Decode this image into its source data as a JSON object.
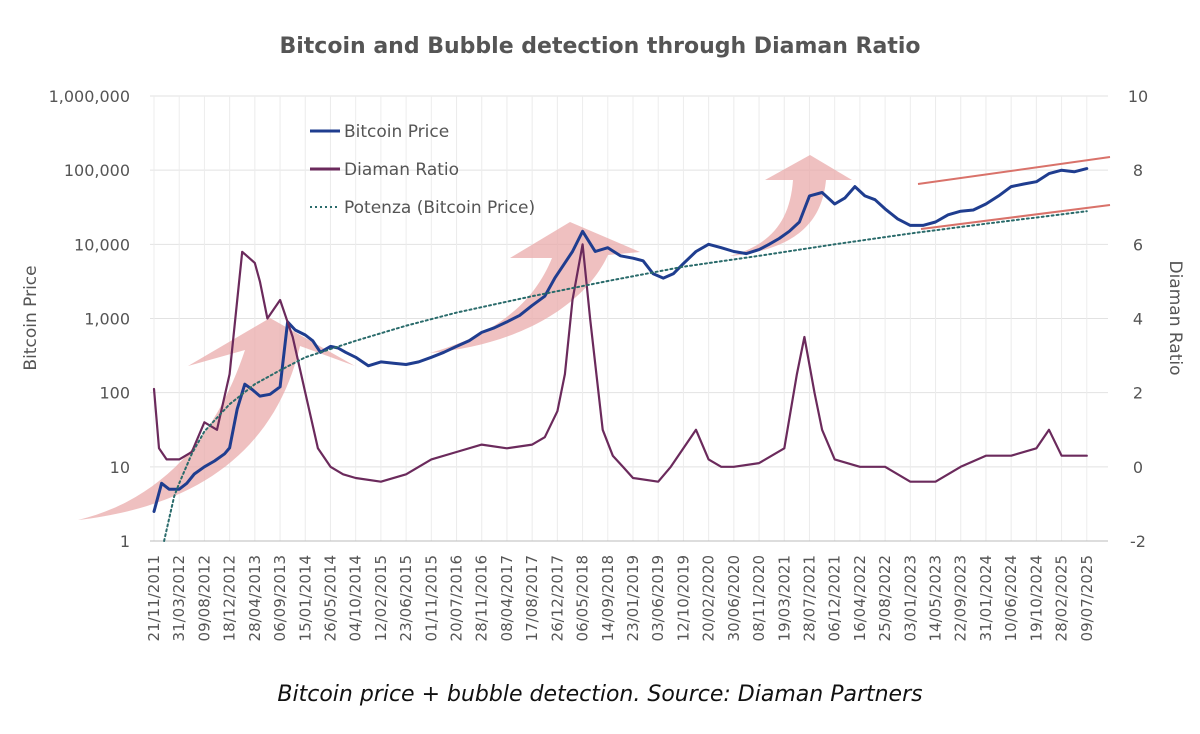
{
  "caption": "Bitcoin price + bubble detection. Source: Diaman Partners",
  "chart_data": {
    "type": "line",
    "title": "Bitcoin and Bubble detection through Diaman Ratio",
    "ylabel": "Bitcoin Price",
    "y2label": "Diaman Ratio",
    "yscale": "log",
    "ylim": [
      1,
      1000000
    ],
    "y2lim": [
      -2,
      10
    ],
    "yticks": [
      "1",
      "10",
      "100",
      "1,000",
      "10,000",
      "100,000",
      "1,000,000"
    ],
    "y2ticks": [
      "-2",
      "0",
      "2",
      "4",
      "6",
      "8",
      "10"
    ],
    "xticks": [
      "21/11/2011",
      "31/03/2012",
      "09/08/2012",
      "18/12/2012",
      "28/04/2013",
      "06/09/2013",
      "15/01/2014",
      "26/05/2014",
      "04/10/2014",
      "12/02/2015",
      "23/06/2015",
      "01/11/2015",
      "20/07/2016",
      "28/11/2016",
      "08/04/2017",
      "17/08/2017",
      "26/12/2017",
      "06/05/2018",
      "14/09/2018",
      "23/01/2019",
      "03/06/2019",
      "12/10/2019",
      "20/02/2020",
      "30/06/2020",
      "08/11/2020",
      "19/03/2021",
      "28/07/2021",
      "06/12/2021",
      "16/04/2022",
      "25/08/2022",
      "03/01/2023",
      "14/05/2023",
      "22/09/2023",
      "31/01/2024",
      "10/06/2024",
      "19/10/2024",
      "28/02/2025",
      "09/07/2025"
    ],
    "grid": true,
    "legend_position": "top-left",
    "series": [
      {
        "name": "Bitcoin Price",
        "axis": "left",
        "color": "#1f3d8f",
        "style": "solid",
        "x": [
          0,
          0.3,
          0.6,
          1,
          1.3,
          1.6,
          2,
          2.4,
          2.8,
          3,
          3.3,
          3.6,
          3.9,
          4.2,
          4.6,
          5,
          5.3,
          5.6,
          6,
          6.3,
          6.6,
          7,
          7.3,
          7.6,
          8,
          8.5,
          9,
          9.5,
          10,
          10.5,
          11,
          11.5,
          12,
          12.5,
          13,
          13.5,
          14,
          14.5,
          15,
          15.5,
          15.9,
          16.2,
          16.6,
          17,
          17.5,
          18,
          18.5,
          19,
          19.4,
          19.8,
          20.2,
          20.6,
          21,
          21.5,
          22,
          22.5,
          23,
          23.5,
          24,
          24.4,
          24.8,
          25.2,
          25.6,
          26,
          26.5,
          27,
          27.4,
          27.8,
          28.2,
          28.6,
          29,
          29.5,
          30,
          30.5,
          31,
          31.5,
          32,
          32.5,
          33,
          33.5,
          34,
          34.5,
          35,
          35.5,
          36,
          36.5,
          37
        ],
        "y": [
          2.5,
          6,
          5,
          5,
          6,
          8,
          10,
          12,
          15,
          18,
          60,
          130,
          110,
          90,
          95,
          120,
          900,
          700,
          600,
          500,
          350,
          420,
          400,
          350,
          300,
          230,
          260,
          250,
          240,
          260,
          300,
          350,
          420,
          500,
          650,
          750,
          900,
          1100,
          1500,
          2000,
          3500,
          5000,
          8000,
          15000,
          8000,
          9000,
          7000,
          6500,
          6000,
          4000,
          3500,
          4000,
          5500,
          8000,
          10000,
          9000,
          8000,
          7500,
          8500,
          10000,
          12000,
          15000,
          20000,
          45000,
          50000,
          35000,
          42000,
          60000,
          45000,
          40000,
          30000,
          22000,
          18000,
          18000,
          20000,
          25000,
          28000,
          29000,
          35000,
          45000,
          60000,
          65000,
          70000,
          90000,
          100000,
          95000,
          105000
        ]
      },
      {
        "name": "Diaman Ratio",
        "axis": "right",
        "color": "#6b2a5c",
        "style": "solid",
        "x": [
          0,
          0.2,
          0.5,
          1,
          1.5,
          2,
          2.5,
          3,
          3.5,
          4,
          4.2,
          4.5,
          5,
          5.5,
          6,
          6.5,
          7,
          7.5,
          8,
          9,
          10,
          11,
          12,
          13,
          14,
          15,
          15.5,
          16,
          16.3,
          16.6,
          17,
          17.3,
          17.8,
          18.2,
          18.6,
          19,
          20,
          20.5,
          21,
          21.5,
          22,
          22.5,
          23,
          24,
          25,
          25.5,
          25.8,
          26.2,
          26.5,
          27,
          28,
          29,
          30,
          31,
          32,
          33,
          34,
          35,
          35.5,
          36,
          36.5,
          37
        ],
        "y": [
          2.1,
          0.5,
          0.2,
          0.2,
          0.4,
          1.2,
          1,
          2.5,
          5.8,
          5.5,
          5,
          4,
          4.5,
          3.5,
          2,
          0.5,
          0,
          -0.2,
          -0.3,
          -0.4,
          -0.2,
          0.2,
          0.4,
          0.6,
          0.5,
          0.6,
          0.8,
          1.5,
          2.5,
          4.5,
          6,
          4,
          1,
          0.3,
          0,
          -0.3,
          -0.4,
          0,
          0.5,
          1,
          0.2,
          0,
          0,
          0.1,
          0.5,
          2.5,
          3.5,
          2,
          1,
          0.2,
          0,
          0,
          -0.4,
          -0.4,
          0,
          0.3,
          0.3,
          0.5,
          1,
          0.3,
          0.3,
          0.3
        ]
      },
      {
        "name": "Potenza (Bitcoin Price)",
        "axis": "left",
        "color": "#2a6b6b",
        "style": "dotted",
        "x": [
          0.4,
          0.6,
          0.8,
          1,
          1.5,
          2,
          3,
          4,
          5,
          6,
          8,
          10,
          12,
          15,
          18,
          21,
          24,
          27,
          30,
          33,
          35,
          37
        ],
        "y": [
          1,
          2,
          4,
          6,
          15,
          30,
          70,
          130,
          200,
          300,
          500,
          800,
          1200,
          2000,
          3200,
          5000,
          7000,
          10000,
          14000,
          19000,
          23000,
          28000
        ]
      }
    ],
    "annotations": [
      "bubble arrows",
      "trend channel lines"
    ]
  }
}
